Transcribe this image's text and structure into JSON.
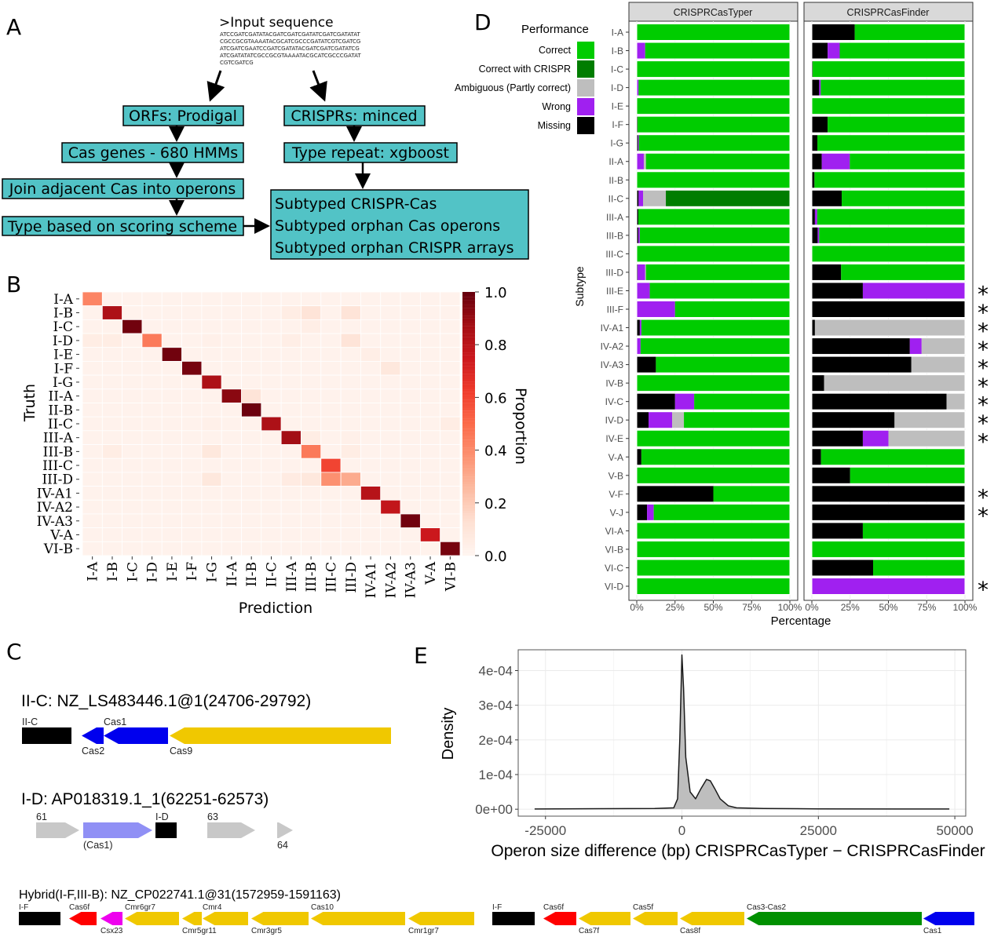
{
  "panels": {
    "a": "A",
    "b": "B",
    "c": "C",
    "d": "D",
    "e": "E"
  },
  "panel_a": {
    "input_title": ">Input sequence",
    "sequence_lines": [
      "ATCCGATCGATATACGATCGATCGATATCGATCGATATAT",
      "CGCCGCGTAAAATACGCATCGCCCGATATCGTCGATCG",
      "ATCGATCGAATCCGATCGATATACGATCGATCGATATCG",
      "ATCGATATATCGCCGCGTAAAATACGCATCGCCCGATAT",
      "CGTCGATCG"
    ],
    "box_color": "#52c3c6",
    "steps": {
      "orfs": "ORFs: Prodigal",
      "crisprs": "CRISPRs: minced",
      "cas_genes": "Cas genes - 680 HMMs",
      "type_repeat": "Type repeat: xgboost",
      "join": "Join adjacent Cas into operons",
      "scoring": "Type based on scoring scheme",
      "outputs": [
        "Subtyped CRISPR-Cas",
        "Subtyped orphan Cas operons",
        "Subtyped orphan CRISPR arrays"
      ]
    }
  },
  "chart_data": [
    {
      "type": "heatmap",
      "xlabel": "Prediction",
      "ylabel": "Truth",
      "colorbar_label": "Proportion",
      "colorbar_ticks": [
        "0.0",
        "0.2",
        "0.4",
        "0.6",
        "0.8",
        "1.0"
      ],
      "colorbar_range": [
        0,
        1
      ],
      "colorscale": [
        "#fff5f0",
        "#fee0d2",
        "#fcbba1",
        "#fc9272",
        "#fb6a4a",
        "#ef3b2c",
        "#cb181d",
        "#a50f15",
        "#67000d"
      ],
      "categories": [
        "I-A",
        "I-B",
        "I-C",
        "I-D",
        "I-E",
        "I-F",
        "I-G",
        "II-A",
        "II-B",
        "II-C",
        "III-A",
        "III-B",
        "III-C",
        "III-D",
        "IV-A1",
        "IV-A2",
        "IV-A3",
        "V-A",
        "VI-B"
      ],
      "cells": [
        [
          "I-A",
          "I-A",
          0.42
        ],
        [
          "I-B",
          "I-B",
          0.85
        ],
        [
          "I-B",
          "III-A",
          0.05
        ],
        [
          "I-B",
          "III-B",
          0.1
        ],
        [
          "I-B",
          "III-D",
          0.1
        ],
        [
          "I-C",
          "I-C",
          0.98
        ],
        [
          "I-C",
          "III-B",
          0.04
        ],
        [
          "I-D",
          "I-D",
          0.45
        ],
        [
          "I-D",
          "I-A",
          0.05
        ],
        [
          "I-D",
          "I-B",
          0.05
        ],
        [
          "I-D",
          "I-G",
          0.03
        ],
        [
          "I-D",
          "III-A",
          0.04
        ],
        [
          "I-D",
          "III-D",
          0.1
        ],
        [
          "I-E",
          "I-E",
          0.98
        ],
        [
          "I-E",
          "IV-A1",
          0.04
        ],
        [
          "I-F",
          "I-F",
          0.97
        ],
        [
          "I-F",
          "IV-A2",
          0.08
        ],
        [
          "I-G",
          "I-G",
          0.85
        ],
        [
          "II-A",
          "II-A",
          0.93
        ],
        [
          "II-A",
          "II-B",
          0.1
        ],
        [
          "II-B",
          "II-B",
          0.99
        ],
        [
          "II-C",
          "II-C",
          0.85
        ],
        [
          "II-C",
          "VI-B",
          0.05
        ],
        [
          "II-C",
          "I-G",
          0.03
        ],
        [
          "III-A",
          "III-A",
          0.88
        ],
        [
          "III-A",
          "III-B",
          0.05
        ],
        [
          "III-A",
          "III-D",
          0.03
        ],
        [
          "III-B",
          "III-B",
          0.45
        ],
        [
          "III-B",
          "I-B",
          0.05
        ],
        [
          "III-B",
          "I-G",
          0.08
        ],
        [
          "III-B",
          "III-D",
          0.05
        ],
        [
          "III-C",
          "III-C",
          0.6
        ],
        [
          "III-D",
          "III-C",
          0.38
        ],
        [
          "III-D",
          "III-D",
          0.3
        ],
        [
          "III-D",
          "I-G",
          0.08
        ],
        [
          "III-D",
          "III-A",
          0.06
        ],
        [
          "III-D",
          "III-B",
          0.08
        ],
        [
          "IV-A1",
          "IV-A1",
          0.82
        ],
        [
          "IV-A2",
          "IV-A2",
          0.78
        ],
        [
          "IV-A3",
          "IV-A3",
          0.98
        ],
        [
          "V-A",
          "V-A",
          0.75
        ],
        [
          "VI-B",
          "VI-B",
          0.97
        ]
      ]
    },
    {
      "type": "bar",
      "orientation": "horizontal-stacked",
      "xlabel": "Percentage",
      "ylabel": "Subtype",
      "xlim": [
        0,
        100
      ],
      "xticks": [
        "0%",
        "25%",
        "50%",
        "75%",
        "100%"
      ],
      "legend_title": "Performance",
      "legend": "left",
      "series_names": [
        "Missing",
        "Wrong",
        "Ambiguous (Partly correct)",
        "Correct with CRISPR",
        "Correct"
      ],
      "legend_order": [
        "Correct",
        "Correct with CRISPR",
        "Ambiguous (Partly correct)",
        "Wrong",
        "Missing"
      ],
      "colors": {
        "Correct": "#00cc00",
        "Correct with CRISPR": "#007d00",
        "Ambiguous (Partly correct)": "#bebebe",
        "Wrong": "#a020f0",
        "Missing": "#000000"
      },
      "categories": [
        "I-A",
        "I-B",
        "I-C",
        "I-D",
        "I-E",
        "I-F",
        "I-G",
        "II-A",
        "II-B",
        "II-C",
        "III-A",
        "III-B",
        "III-C",
        "III-D",
        "III-E",
        "III-F",
        "IV-A1",
        "IV-A2",
        "IV-A3",
        "IV-B",
        "IV-C",
        "IV-D",
        "IV-E",
        "V-A",
        "V-B",
        "V-F",
        "V-J",
        "VI-A",
        "VI-B",
        "VI-C",
        "VI-D"
      ],
      "facets": [
        {
          "name": "CRISPRCasTyper",
          "values": [
            [
              0,
              0,
              0,
              0,
              100
            ],
            [
              0,
              5.5,
              0,
              0,
              94.5
            ],
            [
              0,
              0,
              0,
              0,
              100
            ],
            [
              0,
              1.2,
              0,
              0,
              98.8
            ],
            [
              0,
              0,
              0,
              0,
              100
            ],
            [
              0.5,
              0,
              0,
              0,
              99.5
            ],
            [
              0.8,
              0.6,
              0,
              0,
              98.6
            ],
            [
              0,
              4.6,
              1.4,
              0,
              94
            ],
            [
              0,
              0,
              0,
              0,
              100
            ],
            [
              1.2,
              2.9,
              14.9,
              81,
              0
            ],
            [
              1,
              0,
              0,
              0,
              99
            ],
            [
              1,
              1,
              0,
              0,
              98
            ],
            [
              0,
              0,
              0,
              0,
              100
            ],
            [
              0.5,
              5,
              0.5,
              0,
              94
            ],
            [
              0,
              8.5,
              0,
              0,
              91.5
            ],
            [
              0,
              25,
              0,
              0,
              75
            ],
            [
              2,
              1,
              0,
              0,
              97
            ],
            [
              0,
              2.5,
              0,
              0,
              97.5
            ],
            [
              12.5,
              0,
              0,
              0,
              87.5
            ],
            [
              0,
              0,
              0,
              0,
              100
            ],
            [
              25,
              12.5,
              0,
              0,
              62.5
            ],
            [
              7.7,
              15.4,
              7.7,
              0,
              69.2
            ],
            [
              0,
              0,
              0,
              0,
              100
            ],
            [
              3,
              0,
              0,
              0,
              97
            ],
            [
              0,
              0,
              0,
              0,
              100
            ],
            [
              50,
              0,
              0,
              0,
              50
            ],
            [
              6.7,
              4.4,
              0,
              0,
              88.9
            ],
            [
              0,
              0,
              0,
              0,
              100
            ],
            [
              0,
              0,
              0,
              0,
              100
            ],
            [
              0,
              0,
              0,
              0,
              100
            ],
            [
              0,
              0,
              0,
              0,
              100
            ]
          ]
        },
        {
          "name": "CRISPRCasFinder",
          "values": [
            [
              28,
              0,
              0,
              0,
              72
            ],
            [
              10.3,
              7.9,
              0,
              0,
              81.8
            ],
            [
              0.5,
              0,
              0,
              0,
              99.5
            ],
            [
              4.8,
              1,
              0,
              0,
              94.2
            ],
            [
              0,
              0,
              0,
              0,
              100
            ],
            [
              10.3,
              0,
              0,
              0,
              89.7
            ],
            [
              3.6,
              0,
              0,
              0,
              96.4
            ],
            [
              6.5,
              18.3,
              0,
              0,
              75.2
            ],
            [
              1.7,
              0,
              0,
              0,
              98.3
            ],
            [
              19.5,
              0,
              0,
              0,
              80.5
            ],
            [
              2,
              1.5,
              0,
              0,
              96.5
            ],
            [
              3.8,
              1,
              0,
              0,
              95.2
            ],
            [
              0,
              0,
              0,
              0,
              100
            ],
            [
              19.1,
              0,
              0,
              0,
              80.9
            ],
            [
              33.3,
              66.7,
              0,
              0,
              0
            ],
            [
              100,
              0,
              0,
              0,
              0
            ],
            [
              2,
              0,
              98,
              0,
              0
            ],
            [
              64,
              7.7,
              28.3,
              0,
              0
            ],
            [
              65,
              0,
              35,
              0,
              0
            ],
            [
              8,
              0,
              92,
              0,
              0
            ],
            [
              88,
              0,
              12,
              0,
              0
            ],
            [
              54,
              0,
              46,
              0,
              0
            ],
            [
              33.3,
              16.7,
              50,
              0,
              0
            ],
            [
              6,
              0,
              0,
              0,
              94
            ],
            [
              25,
              0,
              0,
              0,
              75
            ],
            [
              100,
              0,
              0,
              0,
              0
            ],
            [
              100,
              0,
              0,
              0,
              0
            ],
            [
              33.3,
              0,
              0,
              0,
              66.7
            ],
            [
              0,
              0,
              0,
              0,
              100
            ],
            [
              40,
              0,
              0,
              0,
              60
            ],
            [
              0,
              100,
              0,
              0,
              0
            ]
          ]
        }
      ],
      "significant_marker": "*",
      "significant": [
        "III-E",
        "III-F",
        "IV-A1",
        "IV-A2",
        "IV-A3",
        "IV-B",
        "IV-C",
        "IV-D",
        "IV-E",
        "V-F",
        "V-J",
        "VI-D"
      ]
    },
    {
      "type": "area",
      "xlabel": "Operon size difference (bp) CRISPRCasTyper − CRISPRCasFinder",
      "ylabel": "Density",
      "xlim": [
        -30000,
        52000
      ],
      "ylim": [
        -2e-05,
        0.00046
      ],
      "xticks": [
        -25000,
        0,
        25000,
        50000
      ],
      "xtick_labels": [
        "-25000",
        "0",
        "25000",
        "50000"
      ],
      "yticks": [
        0,
        0.0001,
        0.0002,
        0.0003,
        0.0004
      ],
      "ytick_labels": [
        "0e+00",
        "1e-04",
        "2e-04",
        "3e-04",
        "4e-04"
      ],
      "grid": true,
      "fill": "#bebebe",
      "x": [
        -27000,
        -15000,
        -5000,
        -1500,
        -800,
        -400,
        0,
        300,
        700,
        1500,
        2500,
        3500,
        4500,
        5200,
        6000,
        7000,
        8500,
        10000,
        15000,
        25000,
        49000
      ],
      "y": [
        5e-07,
        1.5e-06,
        2e-06,
        4e-06,
        3e-05,
        0.0002,
        0.000445,
        0.00035,
        0.00015,
        5e-05,
        3e-05,
        6e-05,
        8.6e-05,
        8.2e-05,
        6e-05,
        3e-05,
        1e-05,
        4e-06,
        2e-06,
        1e-06,
        5e-07
      ]
    }
  ],
  "panel_c": {
    "colors": {
      "black": "#000000",
      "yellow": "#f0c800",
      "blue": "#0000ee",
      "lightblue": "#9090f5",
      "grey": "#c8c8c8",
      "red": "#ff0000",
      "magenta": "#ee00ee",
      "green": "#009000"
    },
    "loci": [
      {
        "title": "II-C: NZ_LS483446.1@1(24706-29792)",
        "genes": [
          {
            "label": "II-C",
            "color": "black"
          },
          {
            "label": "Cas2",
            "color": "blue"
          },
          {
            "label": "Cas1",
            "color": "blue"
          },
          {
            "label": "Cas9",
            "color": "yellow"
          }
        ]
      },
      {
        "title": "I-D: AP018319.1_1(62251-62573)",
        "genes": [
          {
            "label": "61",
            "color": "grey"
          },
          {
            "label": "(Cas1)",
            "color": "lightblue"
          },
          {
            "label": "I-D",
            "color": "black"
          },
          {
            "label": "63",
            "color": "grey"
          },
          {
            "label": "64",
            "color": "grey"
          }
        ]
      },
      {
        "title": "Hybrid(I-F,III-B): NZ_CP022741.1@31(1572959-1591163)",
        "genes": [
          {
            "label": "I-F",
            "color": "black"
          },
          {
            "label": "Cas6f",
            "color": "red"
          },
          {
            "label": "Csx23",
            "color": "magenta"
          },
          {
            "label": "Cmr6gr7",
            "color": "yellow"
          },
          {
            "label": "Cmr5gr11",
            "color": "yellow"
          },
          {
            "label": "Cmr4",
            "color": "yellow"
          },
          {
            "label": "Cmr3gr5",
            "color": "yellow"
          },
          {
            "label": "Cas10",
            "color": "yellow"
          },
          {
            "label": "Cmr1gr7",
            "color": "yellow"
          },
          {
            "label": "I-F",
            "color": "black"
          },
          {
            "label": "Cas6f",
            "color": "red"
          },
          {
            "label": "Cas7f",
            "color": "yellow"
          },
          {
            "label": "Cas5f",
            "color": "yellow"
          },
          {
            "label": "Cas8f",
            "color": "yellow"
          },
          {
            "label": "Cas3-Cas2",
            "color": "green"
          },
          {
            "label": "Cas1",
            "color": "blue"
          }
        ]
      }
    ]
  }
}
